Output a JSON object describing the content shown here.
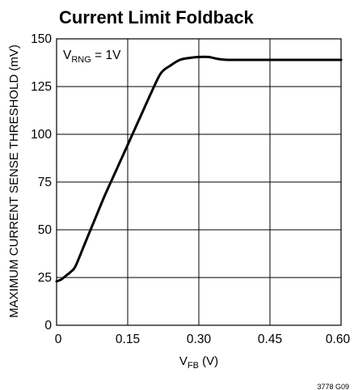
{
  "chart_data": {
    "type": "line",
    "title": "Current Limit Foldback",
    "xlabel": {
      "main": "V",
      "sub": "FB",
      "suffix": " (V)"
    },
    "ylabel": "MAXIMUM CURRENT SENSE THRESHOLD (mV)",
    "annotation": {
      "main": "V",
      "sub": "RNG",
      "suffix": " = 1V"
    },
    "figure_id": "3778 G09",
    "xlim": [
      0,
      0.6
    ],
    "ylim": [
      0,
      150
    ],
    "x_ticks": [
      "0",
      "0.15",
      "0.30",
      "0.45",
      "0.60"
    ],
    "x_tick_values": [
      0,
      0.15,
      0.3,
      0.45,
      0.6
    ],
    "y_ticks": [
      "0",
      "25",
      "50",
      "75",
      "100",
      "125",
      "150"
    ],
    "y_tick_values": [
      0,
      25,
      50,
      75,
      100,
      125,
      150
    ],
    "grid": true,
    "series": [
      {
        "x": [
          0,
          0.01,
          0.02,
          0.03,
          0.04,
          0.06,
          0.08,
          0.1,
          0.12,
          0.14,
          0.16,
          0.18,
          0.2,
          0.22,
          0.24,
          0.26,
          0.28,
          0.3,
          0.32,
          0.34,
          0.36,
          0.4,
          0.45,
          0.5,
          0.55,
          0.6
        ],
        "y": [
          23,
          24,
          26,
          28,
          31,
          43,
          55,
          67,
          78,
          89,
          100,
          111,
          122,
          132,
          136,
          139,
          140,
          140.5,
          140.5,
          139.5,
          139,
          139,
          139,
          139,
          139,
          139
        ]
      }
    ],
    "colors": {
      "line": "#000000",
      "grid": "#000000"
    }
  }
}
